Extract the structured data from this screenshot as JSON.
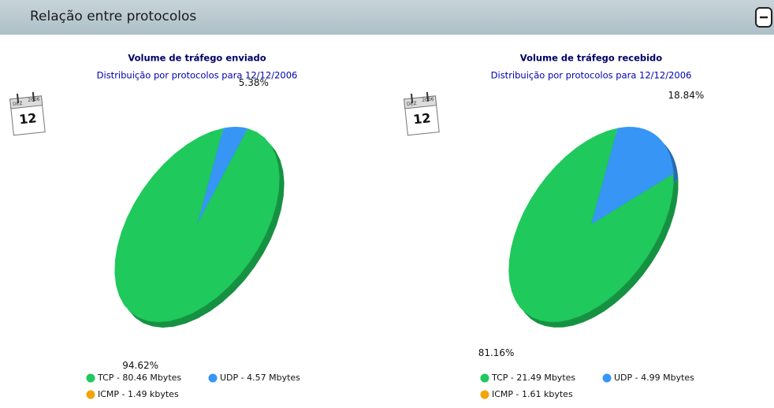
{
  "header": {
    "title": "Relação entre protocolos"
  },
  "chart_data": [
    {
      "type": "pie",
      "title": "Volume de tráfego enviado",
      "subtitle": "Distribuição por protocolos para 12/12/2006",
      "calendar": {
        "month": "DEZ",
        "year": "2006",
        "day": "12"
      },
      "categories": [
        "UDP - 4.57 Mbytes",
        "TCP - 80.46 Mbytes",
        "ICMP - 1.49 kbytes"
      ],
      "values": [
        5.38,
        94.62,
        0
      ],
      "value_labels": [
        "5.38%",
        "94.62%",
        null
      ],
      "colors": [
        "#3796f5",
        "#1fc95b",
        "#f5a30a"
      ]
    },
    {
      "type": "pie",
      "title": "Volume de tráfego recebido",
      "subtitle": "Distribuição por protocolos para 12/12/2006",
      "calendar": {
        "month": "DEZ",
        "year": "2006",
        "day": "12"
      },
      "categories": [
        "UDP - 4.99 Mbytes",
        "TCP - 21.49 Mbytes",
        "ICMP - 1.61 kbytes"
      ],
      "values": [
        18.84,
        81.16,
        0
      ],
      "value_labels": [
        "18.84%",
        "81.16%",
        null
      ],
      "colors": [
        "#3796f5",
        "#1fc95b",
        "#f5a30a"
      ]
    }
  ]
}
